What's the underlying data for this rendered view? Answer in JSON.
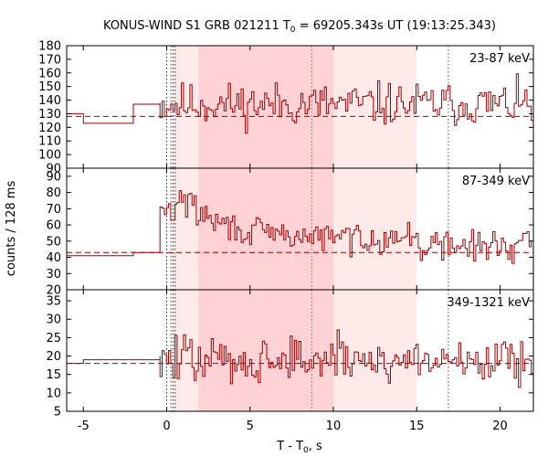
{
  "chart_data": {
    "type": "line",
    "title_parts": {
      "prefix": "KONUS-WIND S1 GRB 021211 T",
      "subscript": "0",
      "suffix": " = 69205.343s UT (19:13:25.343)"
    },
    "xlabel_parts": {
      "prefix": "T - T",
      "subscript": "0",
      "suffix": ", s"
    },
    "ylabel": "counts / 128 ms",
    "xlim": [
      -6,
      22
    ],
    "x_ticks": [
      "-5",
      "0",
      "5",
      "10",
      "15",
      "20"
    ],
    "x_tick_values": [
      -5,
      0,
      5,
      10,
      15,
      20
    ],
    "shaded_intervals": [
      {
        "range": [
          0.4,
          15.0
        ],
        "color": "#ffeaea"
      },
      {
        "range": [
          1.9,
          10.0
        ],
        "color": "#ffd2d5"
      }
    ],
    "vertical_markers": [
      {
        "x": 0.0,
        "style": "dotted",
        "color": "#333333"
      },
      {
        "x": 0.256,
        "style": "dotted",
        "color": "#333333"
      },
      {
        "x": 0.384,
        "style": "dotted",
        "color": "#333333"
      },
      {
        "x": 0.512,
        "style": "dotted",
        "color": "#333333"
      },
      {
        "x": 8.7,
        "style": "dotted",
        "color": "#b05050"
      },
      {
        "x": 16.9,
        "style": "dotted",
        "color": "#555555"
      }
    ],
    "line_color": "#a00000",
    "background_color": "#ff0000",
    "panels": [
      {
        "band": "23-87 keV",
        "ylim": [
          90,
          180
        ],
        "y_ticks": [
          "90",
          "100",
          "110",
          "120",
          "130",
          "140",
          "150",
          "160",
          "170",
          "180"
        ],
        "y_tick_values": [
          90,
          100,
          110,
          120,
          130,
          140,
          150,
          160,
          170,
          180
        ],
        "background_level": 128,
        "pre_trigger": {
          "x": [
            -6.0,
            -5.0,
            -2.0,
            -0.4
          ],
          "y": [
            130,
            123,
            137,
            138
          ]
        },
        "burst": {
          "mean": 137,
          "noise": 12,
          "seed": 11
        }
      },
      {
        "band": "87-349 keV",
        "ylim": [
          20,
          95
        ],
        "y_ticks": [
          "20",
          "30",
          "40",
          "50",
          "60",
          "70",
          "80",
          "90"
        ],
        "y_tick_values": [
          20,
          30,
          40,
          50,
          60,
          70,
          80,
          90
        ],
        "background_level": 43,
        "pre_trigger": {
          "x": [
            -6.0,
            -2.0,
            -0.4
          ],
          "y": [
            41,
            43,
            60
          ]
        },
        "burst": {
          "peak": 80,
          "decay_to": 52,
          "late": 47,
          "noise": 7,
          "seed": 29
        }
      },
      {
        "band": "349-1321 keV",
        "ylim": [
          5,
          38
        ],
        "y_ticks": [
          "5",
          "10",
          "15",
          "20",
          "25",
          "30",
          "35"
        ],
        "y_tick_values": [
          5,
          10,
          15,
          20,
          25,
          30,
          35
        ],
        "background_level": 18,
        "pre_trigger": {
          "x": [
            -6.0,
            -5.0,
            -2.0,
            -0.4
          ],
          "y": [
            18,
            19,
            19,
            20
          ]
        },
        "burst": {
          "mean": 19,
          "noise": 5,
          "seed": 47
        }
      }
    ]
  }
}
